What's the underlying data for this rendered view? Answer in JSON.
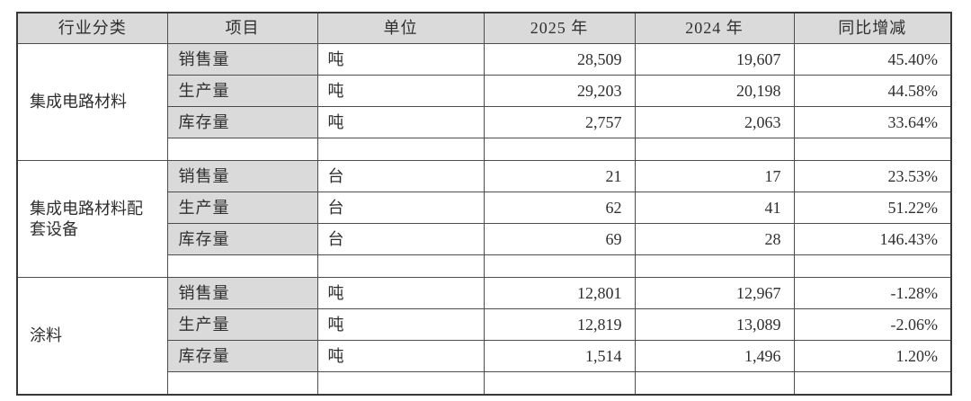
{
  "table": {
    "headers": {
      "industry": "行业分类",
      "item": "项目",
      "unit": "单位",
      "y2025": "2025 年",
      "y2024": "2024 年",
      "yoy": "同比增减"
    },
    "sections": [
      {
        "category": "集成电路材料",
        "rows": [
          {
            "item": "销售量",
            "unit": "吨",
            "y2025": "28,509",
            "y2024": "19,607",
            "yoy": "45.40%"
          },
          {
            "item": "生产量",
            "unit": "吨",
            "y2025": "29,203",
            "y2024": "20,198",
            "yoy": "44.58%"
          },
          {
            "item": "库存量",
            "unit": "吨",
            "y2025": "2,757",
            "y2024": "2,063",
            "yoy": "33.64%"
          }
        ]
      },
      {
        "category": "集成电路材料配套设备",
        "rows": [
          {
            "item": "销售量",
            "unit": "台",
            "y2025": "21",
            "y2024": "17",
            "yoy": "23.53%"
          },
          {
            "item": "生产量",
            "unit": "台",
            "y2025": "62",
            "y2024": "41",
            "yoy": "51.22%"
          },
          {
            "item": "库存量",
            "unit": "台",
            "y2025": "69",
            "y2024": "28",
            "yoy": "146.43%"
          }
        ]
      },
      {
        "category": "涂料",
        "rows": [
          {
            "item": "销售量",
            "unit": "吨",
            "y2025": "12,801",
            "y2024": "12,967",
            "yoy": "-1.28%"
          },
          {
            "item": "生产量",
            "unit": "吨",
            "y2025": "12,819",
            "y2024": "13,089",
            "yoy": "-2.06%"
          },
          {
            "item": "库存量",
            "unit": "吨",
            "y2025": "1,514",
            "y2024": "1,496",
            "yoy": "1.20%"
          }
        ]
      }
    ]
  },
  "colors": {
    "header_background": "#dadada",
    "item_cell_background": "#dadada",
    "border": "#4c4c4c",
    "text": "#2f2f2f",
    "page_background": "#ffffff"
  }
}
